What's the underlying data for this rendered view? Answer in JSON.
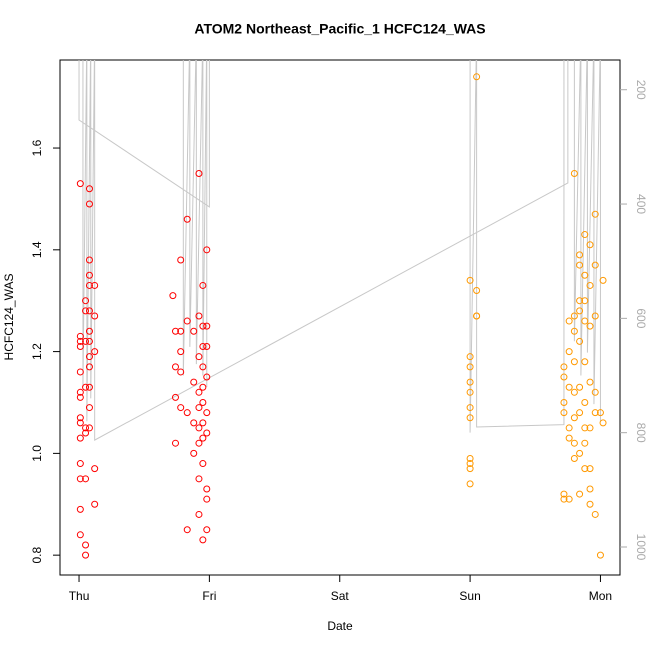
{
  "chart_data": {
    "type": "scatter",
    "title": "ATOM2 Northeast_Pacific_1 HCFC124_WAS",
    "x_label": "Date",
    "y_label": "HCFC124_WAS",
    "xlim": [
      -0.146,
      4.15
    ],
    "xticks": [
      {
        "value": 0,
        "label": "Thu"
      },
      {
        "value": 1,
        "label": "Fri"
      },
      {
        "value": 2,
        "label": "Sat"
      },
      {
        "value": 3,
        "label": "Sun"
      },
      {
        "value": 4,
        "label": "Mon"
      }
    ],
    "ylim": [
      0.761,
      1.773
    ],
    "yticks": [
      0.8,
      {
        "value": 1,
        "label": "1.0"
      },
      1.2,
      1.4,
      1.6
    ],
    "y2lim": [
      1049,
      148
    ],
    "y2ticks": [
      200,
      400,
      600,
      800,
      1000
    ],
    "series": [
      {
        "color": "#ff0000",
        "x": [
          0.01,
          0.01,
          0.01,
          0.01,
          0.01,
          0.01,
          0.01,
          0.01,
          0.01,
          0.01,
          0.01,
          0.01,
          0.01,
          0.01,
          0.05,
          0.05,
          0.05,
          0.05,
          0.05,
          0.05,
          0.05,
          0.05,
          0.05,
          0.08,
          0.08,
          0.08,
          0.08,
          0.08,
          0.08,
          0.08,
          0.08,
          0.08,
          0.08,
          0.08,
          0.08,
          0.08,
          0.12,
          0.12,
          0.12,
          0.12,
          0.12,
          0.72,
          0.74,
          0.74,
          0.74,
          0.74,
          0.78,
          0.78,
          0.78,
          0.78,
          0.78,
          0.83,
          0.83,
          0.83,
          0.83,
          0.88,
          0.88,
          0.88,
          0.88,
          0.92,
          0.92,
          0.92,
          0.92,
          0.92,
          0.92,
          0.92,
          0.92,
          0.92,
          0.95,
          0.95,
          0.95,
          0.95,
          0.95,
          0.95,
          0.95,
          0.95,
          0.95,
          0.95,
          0.98,
          0.98,
          0.98,
          0.98,
          0.98,
          0.98,
          0.98,
          0.98,
          0.98
        ],
        "values": [
          1.53,
          1.23,
          1.22,
          1.21,
          1.16,
          1.12,
          1.11,
          1.07,
          1.06,
          1.03,
          0.98,
          0.95,
          0.89,
          0.84,
          1.3,
          1.28,
          1.22,
          1.13,
          1.05,
          1.04,
          0.95,
          0.82,
          0.8,
          1.52,
          1.49,
          1.38,
          1.35,
          1.33,
          1.28,
          1.24,
          1.22,
          1.19,
          1.17,
          1.13,
          1.09,
          1.05,
          1.33,
          1.27,
          1.2,
          0.97,
          0.9,
          1.31,
          1.24,
          1.17,
          1.11,
          1.02,
          1.38,
          1.24,
          1.2,
          1.16,
          1.09,
          1.46,
          1.26,
          1.08,
          0.85,
          1.24,
          1.14,
          1.06,
          1.0,
          1.55,
          1.27,
          1.19,
          1.12,
          1.09,
          1.05,
          1.02,
          0.95,
          0.88,
          1.33,
          1.25,
          1.21,
          1.17,
          1.13,
          1.1,
          1.06,
          1.03,
          0.98,
          0.83,
          1.4,
          1.25,
          1.21,
          1.15,
          1.08,
          1.04,
          0.93,
          0.91,
          0.85
        ]
      },
      {
        "color": "#ff9900",
        "x": [
          3.0,
          3.0,
          3.0,
          3.0,
          3.0,
          3.0,
          3.0,
          3.0,
          3.0,
          3.0,
          3.0,
          3.05,
          3.05,
          3.05,
          3.05,
          3.72,
          3.72,
          3.72,
          3.72,
          3.72,
          3.72,
          3.76,
          3.76,
          3.76,
          3.76,
          3.76,
          3.76,
          3.8,
          3.8,
          3.8,
          3.8,
          3.8,
          3.8,
          3.8,
          3.8,
          3.84,
          3.84,
          3.84,
          3.84,
          3.84,
          3.84,
          3.84,
          3.84,
          3.84,
          3.88,
          3.88,
          3.88,
          3.88,
          3.88,
          3.88,
          3.88,
          3.88,
          3.88,
          3.92,
          3.92,
          3.92,
          3.92,
          3.92,
          3.92,
          3.92,
          3.92,
          3.96,
          3.96,
          3.96,
          3.96,
          3.96,
          3.96,
          4.0,
          4.0,
          4.02,
          4.02
        ],
        "values": [
          1.34,
          1.19,
          1.17,
          1.14,
          1.12,
          1.09,
          1.07,
          0.99,
          0.98,
          0.97,
          0.94,
          1.74,
          1.32,
          1.27,
          1.27,
          1.17,
          1.15,
          1.1,
          1.08,
          0.92,
          0.91,
          1.26,
          1.2,
          1.13,
          1.05,
          1.03,
          0.91,
          1.55,
          1.27,
          1.24,
          1.18,
          1.12,
          1.07,
          1.02,
          0.99,
          1.39,
          1.37,
          1.3,
          1.28,
          1.22,
          1.13,
          1.08,
          1.0,
          0.92,
          1.43,
          1.35,
          1.3,
          1.26,
          1.18,
          1.1,
          1.05,
          1.02,
          0.97,
          1.41,
          1.33,
          1.25,
          1.14,
          1.05,
          0.93,
          0.9,
          0.97,
          1.47,
          1.37,
          1.27,
          1.12,
          1.08,
          0.88,
          1.08,
          0.8,
          1.34,
          1.06
        ]
      },
      {
        "color": "#c8c8c8",
        "axis": "y2",
        "line": true,
        "x": [
          0,
          0,
          1.0,
          1.0,
          null,
          0.03,
          0.03,
          0.06,
          0.06,
          0.09,
          0.09,
          0.12,
          0.12,
          3.75,
          3.75,
          null,
          0.8,
          0.8,
          0.85,
          0.85,
          0.9,
          0.9,
          0.95,
          0.95,
          0.98,
          0.98,
          null,
          3.0,
          3.0,
          3.05,
          3.05,
          3.72,
          3.72,
          3.8,
          3.8,
          3.85,
          3.85,
          3.9,
          3.9,
          3.95,
          3.95,
          4.0,
          4.0
        ],
        "values": [
          100,
          253,
          405,
          100,
          null,
          100,
          720,
          100,
          780,
          100,
          740,
          100,
          813,
          363,
          100,
          null,
          100,
          700,
          100,
          650,
          100,
          680,
          100,
          700,
          100,
          720,
          null,
          100,
          800,
          100,
          790,
          786,
          100,
          100,
          640,
          100,
          700,
          100,
          660,
          100,
          750,
          100,
          780
        ]
      }
    ]
  }
}
